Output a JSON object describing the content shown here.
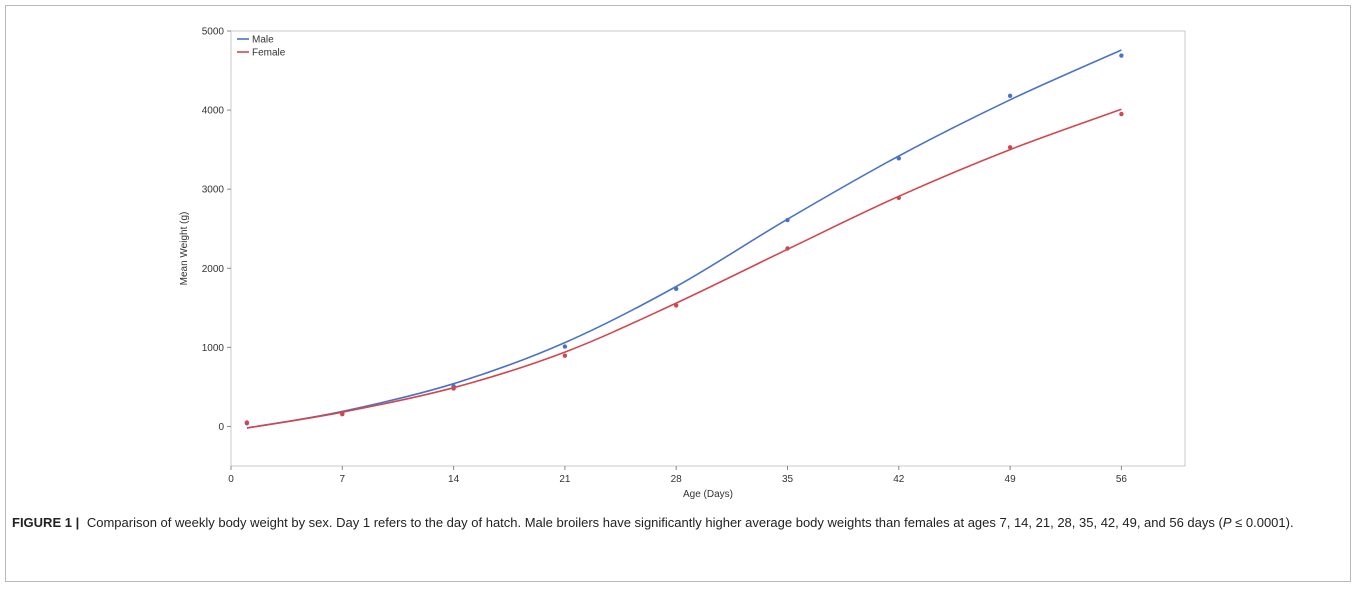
{
  "chart_data": {
    "type": "scatter",
    "xlabel": "Age (Days)",
    "ylabel": "Mean Weight (g)",
    "xlim": [
      0,
      60
    ],
    "ylim": [
      -500,
      5000
    ],
    "xticks": [
      0,
      7,
      14,
      21,
      28,
      35,
      42,
      49,
      56
    ],
    "yticks": [
      0,
      1000,
      2000,
      3000,
      4000,
      5000
    ],
    "legend_position": "top-left",
    "grid": false,
    "series": [
      {
        "name": "Male",
        "color": "#4a73c8",
        "points": [
          [
            1,
            40
          ],
          [
            7,
            170
          ],
          [
            14,
            510
          ],
          [
            21,
            1010
          ],
          [
            28,
            1740
          ],
          [
            35,
            2610
          ],
          [
            42,
            3390
          ],
          [
            49,
            4180
          ],
          [
            56,
            4690
          ]
        ],
        "fit": [
          [
            1,
            -20
          ],
          [
            7,
            190
          ],
          [
            14,
            540
          ],
          [
            21,
            1060
          ],
          [
            28,
            1770
          ],
          [
            35,
            2620
          ],
          [
            42,
            3420
          ],
          [
            49,
            4130
          ],
          [
            56,
            4760
          ]
        ]
      },
      {
        "name": "Female",
        "color": "#d2474f",
        "points": [
          [
            1,
            50
          ],
          [
            7,
            155
          ],
          [
            14,
            480
          ],
          [
            21,
            895
          ],
          [
            28,
            1530
          ],
          [
            35,
            2250
          ],
          [
            42,
            2890
          ],
          [
            49,
            3530
          ],
          [
            56,
            3950
          ]
        ],
        "fit": [
          [
            1,
            -20
          ],
          [
            7,
            180
          ],
          [
            14,
            490
          ],
          [
            21,
            940
          ],
          [
            28,
            1560
          ],
          [
            35,
            2240
          ],
          [
            42,
            2910
          ],
          [
            49,
            3500
          ],
          [
            56,
            4010
          ]
        ]
      }
    ]
  },
  "caption": {
    "label": "FIGURE 1",
    "separator": "|",
    "text_before_p": " Comparison of weekly body weight by sex. Day 1 refers to the day of hatch. Male broilers have significantly higher average body weights than females at ages 7, 14, 21, 28, 35, 42, 49, and 56 days (",
    "p_symbol": "P",
    "text_after_p": " ≤ 0.0001)."
  }
}
